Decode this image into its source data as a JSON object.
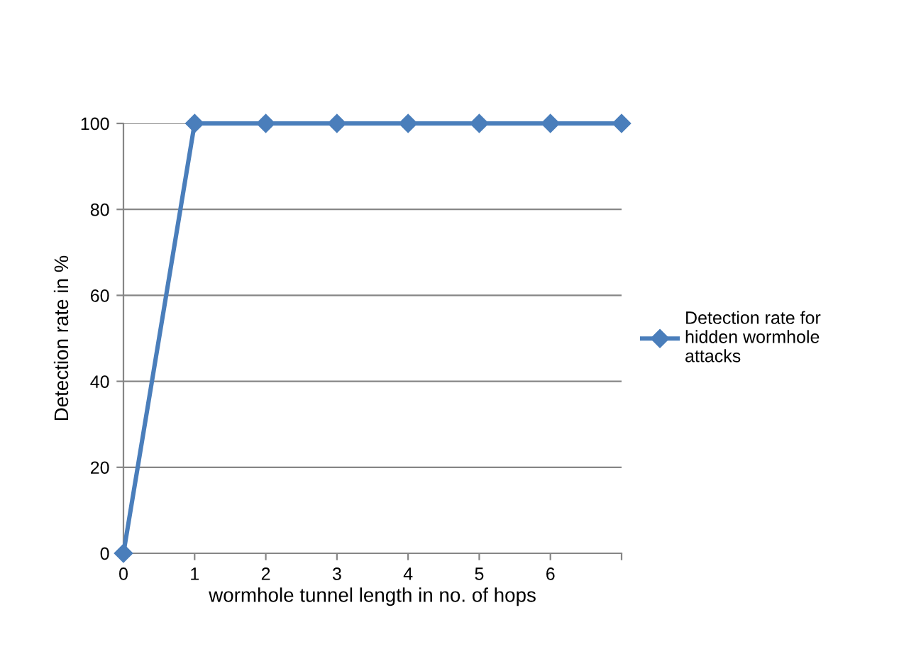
{
  "chart_data": {
    "type": "line",
    "xlabel": "wormhole tunnel length in no. of hops",
    "ylabel": "Detection rate in %",
    "categories": [
      "0",
      "1",
      "2",
      "3",
      "4",
      "5",
      "6",
      null
    ],
    "series": [
      {
        "name": "Detection rate for hidden wormhole attacks",
        "color": "#4a7ebb",
        "values": [
          0,
          100,
          100,
          100,
          100,
          100,
          100,
          100
        ]
      }
    ],
    "ylim": [
      0,
      100
    ],
    "yticks": [
      0,
      20,
      40,
      60,
      80,
      100
    ],
    "grid": "y",
    "legend": "right",
    "marker": "diamond",
    "line_style": "solid"
  }
}
